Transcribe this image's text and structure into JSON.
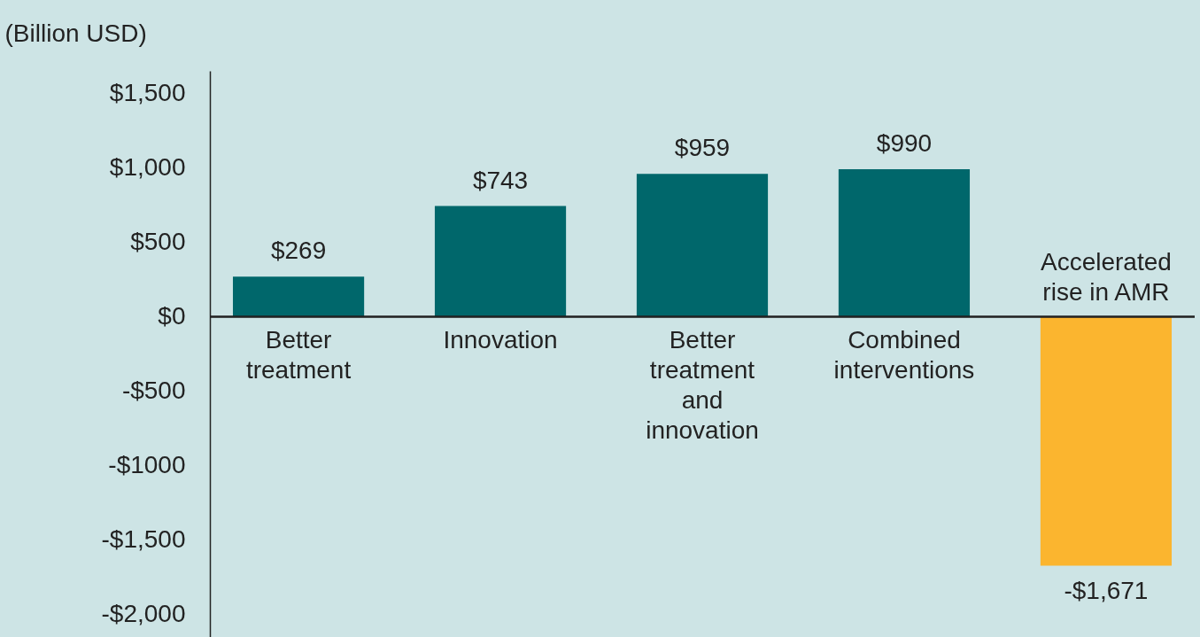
{
  "chart_data": {
    "type": "bar",
    "ylabel": "(Billion USD)",
    "categories": [
      "Better treatment",
      "Innovation",
      "Better treatment and innovation",
      "Combined interventions",
      "Accelerated rise in AMR"
    ],
    "values": [
      269,
      743,
      959,
      990,
      -1671
    ],
    "colors": [
      "#00676b",
      "#00676b",
      "#00676b",
      "#00676b",
      "#fbb52f"
    ],
    "value_labels": [
      "$269",
      "$743",
      "$959",
      "$990",
      "-$1,671"
    ],
    "ylim": [
      -2150,
      1650
    ],
    "yticks": [
      {
        "value": -2000,
        "label": "-$2,000"
      },
      {
        "value": -1500,
        "label": "-$1,500"
      },
      {
        "value": -1000,
        "label": "-$1000"
      },
      {
        "value": -500,
        "label": "-$500"
      },
      {
        "value": 0,
        "label": "$0"
      },
      {
        "value": 500,
        "label": "$500"
      },
      {
        "value": 1000,
        "label": "$1,000"
      },
      {
        "value": 1500,
        "label": "$1,500"
      }
    ]
  }
}
